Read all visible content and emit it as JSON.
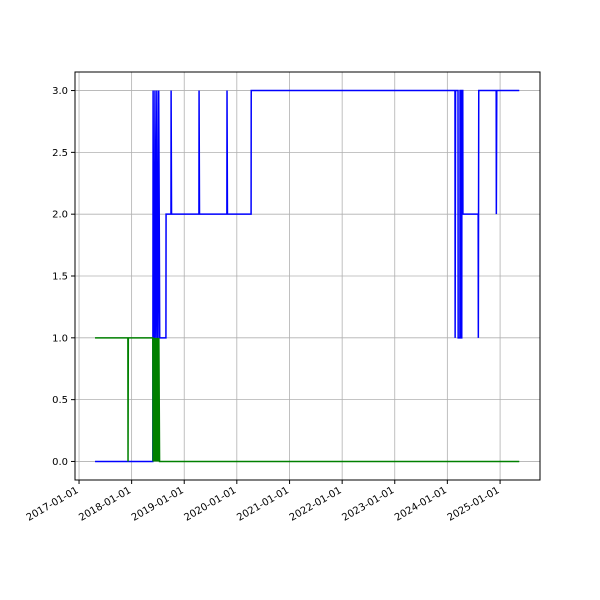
{
  "chart_data": {
    "type": "line",
    "xlim": [
      "2016-12-04",
      "2025-10-05"
    ],
    "xticks": [
      "2017-01-01",
      "2018-01-01",
      "2019-01-01",
      "2020-01-01",
      "2021-01-01",
      "2022-01-01",
      "2023-01-01",
      "2024-01-01",
      "2025-01-01"
    ],
    "ylim": [
      -0.15,
      3.15
    ],
    "yticks": [
      {
        "value": 0,
        "label": "0.0"
      },
      {
        "value": 0.5,
        "label": "0.5"
      },
      {
        "value": 1,
        "label": "1.0"
      },
      {
        "value": 1.5,
        "label": "1.5"
      },
      {
        "value": 2,
        "label": "2.0"
      },
      {
        "value": 2.5,
        "label": "2.5"
      },
      {
        "value": 3,
        "label": "3.0"
      }
    ],
    "grid": true,
    "series": [
      {
        "color": "#0000ff",
        "x": [
          "2017-04-22",
          "2018-05-28",
          "2018-05-30",
          "2018-06-05",
          "2018-06-12",
          "2018-06-18",
          "2018-06-25",
          "2018-07-01",
          "2018-07-08",
          "2018-07-15",
          "2018-08-27",
          "2018-08-28",
          "2018-10-01",
          "2018-10-02",
          "2018-10-05",
          "2019-04-13",
          "2019-04-14",
          "2019-04-17",
          "2019-10-24",
          "2019-10-25",
          "2019-10-28",
          "2020-04-09",
          "2020-04-10",
          "2024-02-23",
          "2024-02-24",
          "2024-02-27",
          "2024-03-15",
          "2024-03-16",
          "2024-03-28",
          "2024-03-29",
          "2024-04-04",
          "2024-04-05",
          "2024-04-10",
          "2024-04-11",
          "2024-04-17",
          "2024-04-18",
          "2024-08-02",
          "2024-08-03",
          "2024-08-06",
          "2024-12-05",
          "2024-12-06",
          "2024-12-09",
          "2025-05-14"
        ],
        "values": [
          0,
          0,
          3,
          0,
          3,
          1,
          3,
          0,
          3,
          1,
          1,
          2,
          2,
          3,
          2,
          2,
          3,
          2,
          2,
          3,
          2,
          2,
          3,
          3,
          1,
          3,
          3,
          1,
          1,
          3,
          3,
          1,
          1,
          3,
          3,
          2,
          2,
          1,
          3,
          3,
          2,
          3,
          3
        ]
      },
      {
        "color": "#008000",
        "x": [
          "2017-04-22",
          "2017-12-06",
          "2017-12-07",
          "2017-12-09",
          "2018-05-28",
          "2018-05-30",
          "2018-06-03",
          "2018-06-06",
          "2018-06-10",
          "2018-06-14",
          "2018-06-19",
          "2018-06-24",
          "2018-06-29",
          "2018-07-04",
          "2018-07-09",
          "2018-07-14",
          "2018-07-17",
          "2025-05-14"
        ],
        "values": [
          1,
          1,
          0,
          1,
          1,
          0,
          1,
          0,
          1,
          0,
          1,
          0,
          1,
          0,
          1,
          0,
          0,
          0
        ]
      }
    ]
  }
}
